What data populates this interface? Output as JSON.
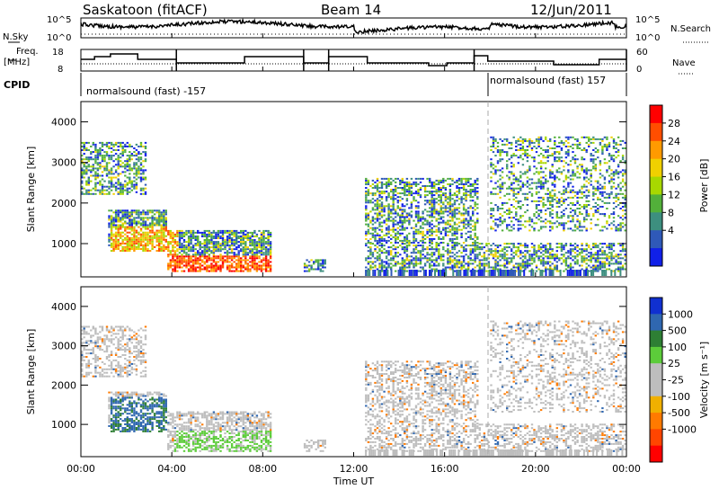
{
  "header": {
    "station": "Saskatoon (fitACF)",
    "beam": "Beam 14",
    "date": "12/Jun/2011"
  },
  "sky_panel": {
    "left_label": "N.Sky",
    "right_label": "N.Search",
    "tick_top": "10^5",
    "tick_bottom": "10^0"
  },
  "freq_panel": {
    "left_label_1": "Freq.",
    "left_label_2": "[MHz]",
    "right_label": "Nave",
    "left_ticks": [
      "18",
      "8"
    ],
    "right_ticks": [
      "60",
      "0"
    ]
  },
  "cpid": {
    "label": "CPID",
    "mode_1": "normalsound (fast) -157",
    "mode_2": "normalsound (fast) 157"
  },
  "chart_data": [
    {
      "type": "heatmap",
      "panel": "power",
      "ylabel": "Slant Range [km]",
      "yticks": [
        "4000",
        "3000",
        "2000",
        "1000"
      ],
      "ylim": [
        180,
        4500
      ],
      "xlim_hours": [
        0,
        24
      ],
      "colorbar_label": "Power [dB]",
      "colorbar_ticks": [
        "28",
        "24",
        "20",
        "16",
        "12",
        "8",
        "4"
      ],
      "colorbar_colors": [
        "#ff0000",
        "#ff4e00",
        "#ff9a00",
        "#f0d000",
        "#a8d800",
        "#52b03a",
        "#3d8f7f",
        "#2f59b8",
        "#1020e8"
      ],
      "echo_regions": [
        {
          "t0": 0.0,
          "t1": 2.9,
          "r0": 2200,
          "r1": 3500
        },
        {
          "t0": 1.2,
          "t1": 3.8,
          "r0": 800,
          "r1": 1800
        },
        {
          "t0": 3.8,
          "t1": 8.3,
          "r0": 300,
          "r1": 1300
        },
        {
          "t0": 9.8,
          "t1": 10.7,
          "r0": 300,
          "r1": 600
        },
        {
          "t0": 12.5,
          "t1": 17.5,
          "r0": 1000,
          "r1": 2600
        },
        {
          "t0": 12.5,
          "t1": 24.0,
          "r0": 300,
          "r1": 1000
        },
        {
          "t0": 18.0,
          "t1": 24.0,
          "r0": 1300,
          "r1": 3600
        }
      ]
    },
    {
      "type": "heatmap",
      "panel": "velocity",
      "ylabel": "Slant Range [km]",
      "yticks": [
        "4000",
        "3000",
        "2000",
        "1000"
      ],
      "ylim": [
        180,
        4500
      ],
      "xlabel": "Time UT",
      "xticks": [
        "00:00",
        "04:00",
        "08:00",
        "12:00",
        "16:00",
        "20:00",
        "00:00"
      ],
      "colorbar_label": "Velocity [m s⁻¹]",
      "colorbar_ticks": [
        "1000",
        "500",
        "100",
        "25",
        "-25",
        "-100",
        "-500",
        "-1000"
      ],
      "colorbar_colors": [
        "#1030d0",
        "#2f67b0",
        "#2e7f34",
        "#5ccc3a",
        "#bdbdbd",
        "#bdbdbd",
        "#f0b000",
        "#ff7a00",
        "#ff4500",
        "#ff0000"
      ]
    }
  ]
}
